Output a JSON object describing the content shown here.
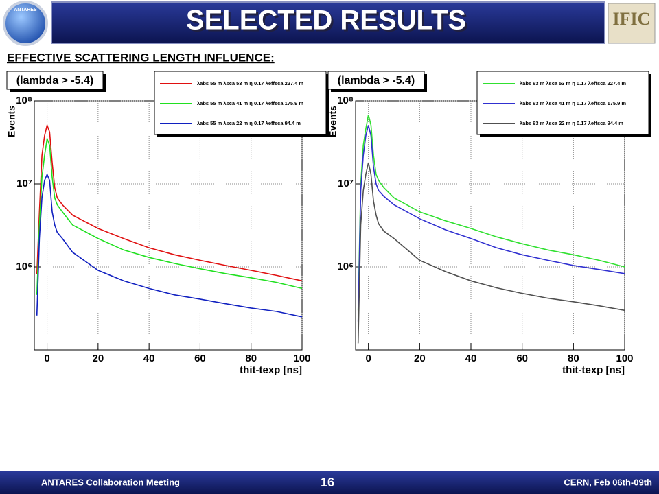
{
  "header": {
    "title": "SELECTED RESULTS",
    "subtitle": "EFFECTIVE SCATTERING LENGTH INFLUENCE:",
    "logo_left": "ANTARES",
    "logo_right": "IFIC"
  },
  "footer": {
    "left": "ANTARES Collaboration Meeting",
    "page": "16",
    "right": "CERN, Feb 06th-09th"
  },
  "chart_data": [
    {
      "type": "line",
      "annotation": "(lambda > -5.4)",
      "ylabel": "Events",
      "xlabel": "thit-texp [ns]",
      "log_y": true,
      "grid": true,
      "legend": "top-right",
      "xlim": [
        -5,
        100
      ],
      "ylim": [
        100000,
        100000000
      ],
      "xticks": [
        0,
        20,
        40,
        60,
        80,
        100
      ],
      "yticks": [
        {
          "value": 1000000,
          "label": "10⁶"
        },
        {
          "value": 10000000,
          "label": "10⁷"
        },
        {
          "value": 100000000,
          "label": "10⁸"
        }
      ],
      "x": [
        -4,
        -3,
        -2,
        -1,
        0,
        1,
        2,
        3,
        4,
        6,
        10,
        20,
        30,
        40,
        50,
        60,
        70,
        80,
        90,
        100
      ],
      "series": [
        {
          "name": "λabs 55 m λsca 53 m η 0.17 λeffsca 227.4 m",
          "color": "#e01010",
          "values": [
            820000,
            4600000,
            22000000,
            38000000,
            51000000,
            42000000,
            18000000,
            9000000,
            6800000,
            5600000,
            4200000,
            2900000,
            2200000,
            1700000,
            1400000,
            1200000,
            1040000,
            910000,
            790000,
            680000
          ]
        },
        {
          "name": "λabs 55 m λsca 41 m η 0.17 λeffsca 175.9 m",
          "color": "#20e020",
          "values": [
            460000,
            3200000,
            12000000,
            22000000,
            35000000,
            29000000,
            12000000,
            6800000,
            5600000,
            4600000,
            3200000,
            2200000,
            1600000,
            1300000,
            1100000,
            950000,
            830000,
            740000,
            650000,
            550000
          ]
        },
        {
          "name": "λabs 55 m λsca 22 m η 0.17 λeffsca 94.4 m",
          "color": "#1020c0",
          "values": [
            260000,
            2200000,
            6800000,
            11000000,
            13000000,
            11000000,
            4600000,
            3200000,
            2600000,
            2200000,
            1500000,
            910000,
            680000,
            550000,
            460000,
            410000,
            360000,
            320000,
            290000,
            250000
          ]
        }
      ]
    },
    {
      "type": "line",
      "annotation": "(lambda > -5.4)",
      "ylabel": "Events",
      "xlabel": "thit-texp [ns]",
      "log_y": true,
      "grid": true,
      "legend": "top-right",
      "xlim": [
        -5,
        100
      ],
      "ylim": [
        100000,
        100000000
      ],
      "xticks": [
        0,
        20,
        40,
        60,
        80,
        100
      ],
      "yticks": [
        {
          "value": 1000000,
          "label": "10⁶"
        },
        {
          "value": 10000000,
          "label": "10⁷"
        },
        {
          "value": 100000000,
          "label": "10⁸"
        }
      ],
      "x": [
        -4,
        -3,
        -2,
        -1,
        0,
        1,
        2,
        3,
        4,
        6,
        10,
        20,
        30,
        40,
        50,
        60,
        70,
        80,
        90,
        100
      ],
      "series": [
        {
          "name": "λabs 63 m λsca 53 m η 0.17 λeffsca 227.4 m",
          "color": "#30e030",
          "values": [
            300000,
            10000000,
            29000000,
            46000000,
            68000000,
            51000000,
            22000000,
            13000000,
            11000000,
            9000000,
            6800000,
            4600000,
            3600000,
            2900000,
            2300000,
            1900000,
            1600000,
            1400000,
            1200000,
            1000000
          ]
        },
        {
          "name": "λabs 63 m λsca 41 m η 0.17 λeffsca 175.9 m",
          "color": "#3030d0",
          "values": [
            220000,
            8300000,
            22000000,
            38000000,
            51000000,
            38000000,
            16000000,
            10000000,
            8300000,
            7100000,
            5600000,
            3800000,
            2800000,
            2200000,
            1700000,
            1400000,
            1200000,
            1040000,
            930000,
            830000
          ]
        },
        {
          "name": "λabs 63 m λsca 22 m η 0.17 λeffsca 94.4 m",
          "color": "#505050",
          "values": [
            120000,
            3200000,
            8300000,
            13000000,
            18000000,
            13000000,
            6200000,
            4200000,
            3300000,
            2700000,
            2200000,
            1200000,
            880000,
            680000,
            560000,
            480000,
            420000,
            380000,
            340000,
            300000
          ]
        }
      ]
    }
  ]
}
